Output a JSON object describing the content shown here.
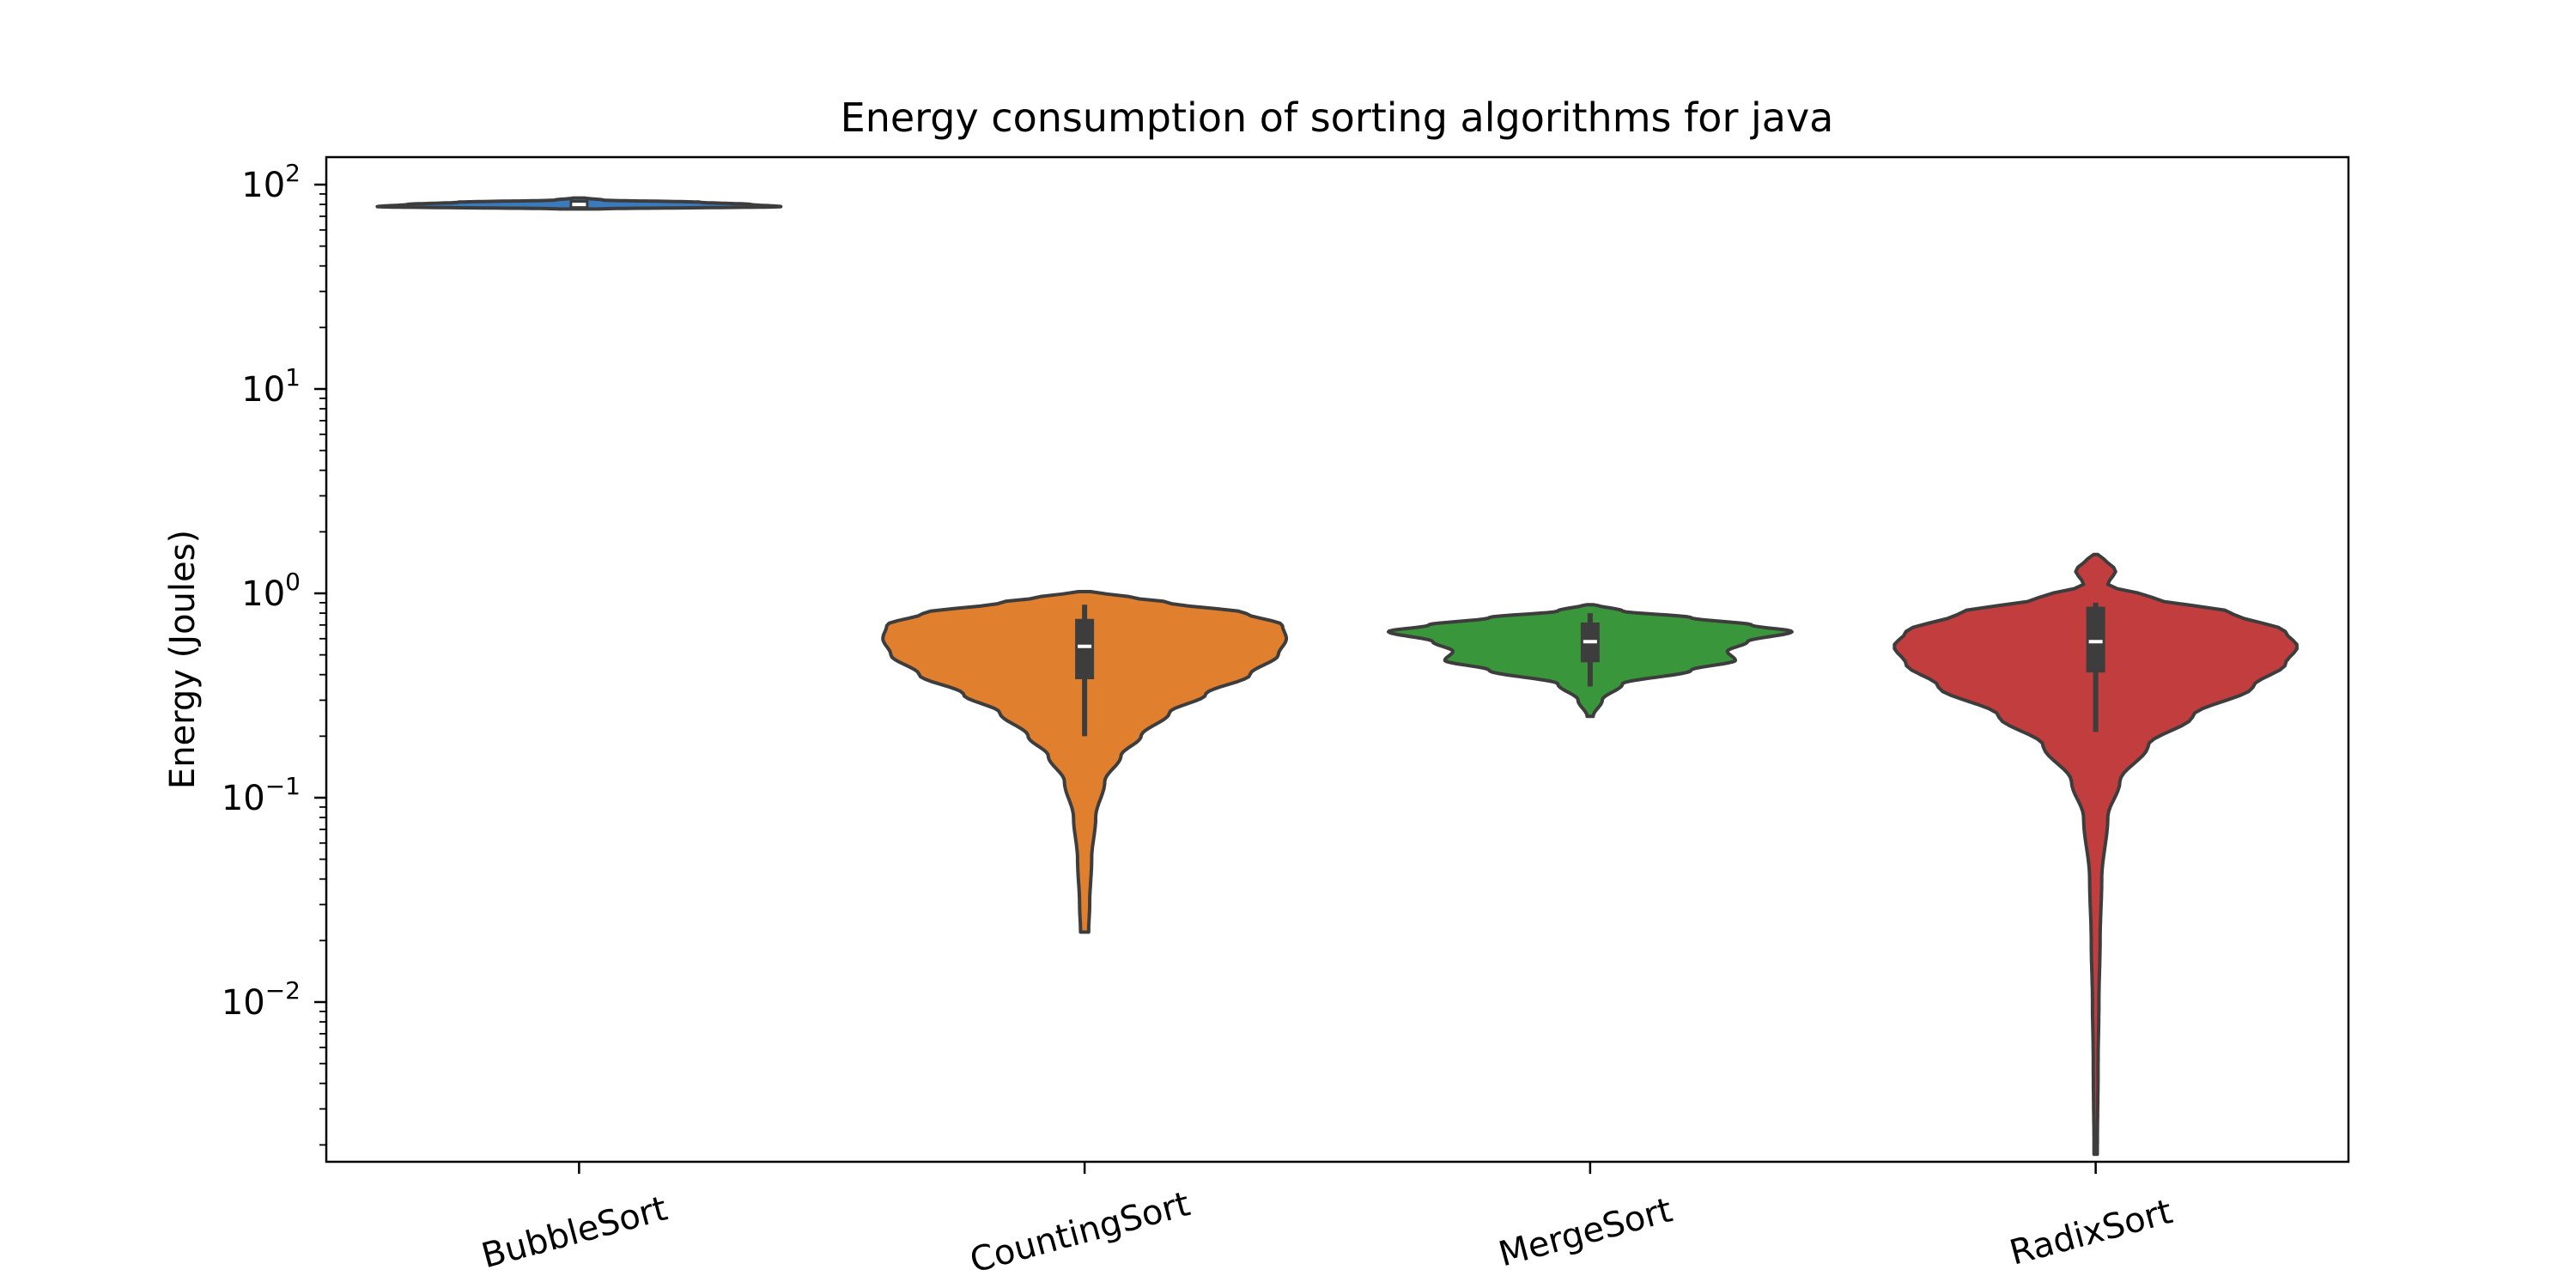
{
  "chart_data": {
    "type": "violin",
    "title": "Energy consumption of sorting algorithms for java",
    "xlabel": "",
    "ylabel": "Energy (Joules)",
    "yscale": "log",
    "ylim": [
      0.0018,
      140
    ],
    "yticks": [
      {
        "base": "10",
        "exp": "2",
        "value": 100
      },
      {
        "base": "10",
        "exp": "1",
        "value": 10
      },
      {
        "base": "10",
        "exp": "0",
        "value": 1
      },
      {
        "base": "10",
        "exp": "−1",
        "value": 0.1
      },
      {
        "base": "10",
        "exp": "−2",
        "value": 0.01
      }
    ],
    "categories": [
      "BubbleSort",
      "CountingSort",
      "MergeSort",
      "RadixSort"
    ],
    "series": [
      {
        "category": "BubbleSort",
        "color": "#3a7bbf",
        "median": 80,
        "q1": 76,
        "q3": 84,
        "whisker_low": 76,
        "whisker_high": 84,
        "min": 76,
        "max": 86,
        "profile": [
          [
            76,
            0.1
          ],
          [
            78,
            1.0
          ],
          [
            80,
            0.85
          ],
          [
            82,
            0.6
          ],
          [
            84,
            0.12
          ],
          [
            86,
            0.03
          ]
        ]
      },
      {
        "category": "CountingSort",
        "color": "#e07f2d",
        "median": 0.55,
        "q1": 0.38,
        "q3": 0.75,
        "whisker_low": 0.2,
        "whisker_high": 0.88,
        "min": 0.022,
        "max": 1.02,
        "profile": [
          [
            0.022,
            0.02
          ],
          [
            0.03,
            0.025
          ],
          [
            0.05,
            0.035
          ],
          [
            0.08,
            0.055
          ],
          [
            0.12,
            0.1
          ],
          [
            0.16,
            0.18
          ],
          [
            0.2,
            0.28
          ],
          [
            0.26,
            0.42
          ],
          [
            0.32,
            0.6
          ],
          [
            0.4,
            0.82
          ],
          [
            0.5,
            0.96
          ],
          [
            0.6,
            1.0
          ],
          [
            0.7,
            0.98
          ],
          [
            0.8,
            0.8
          ],
          [
            0.9,
            0.42
          ],
          [
            0.96,
            0.22
          ],
          [
            1.02,
            0.03
          ]
        ]
      },
      {
        "category": "MergeSort",
        "color": "#3a963a",
        "median": 0.58,
        "q1": 0.46,
        "q3": 0.72,
        "whisker_low": 0.35,
        "whisker_high": 0.8,
        "min": 0.25,
        "max": 0.88,
        "profile": [
          [
            0.25,
            0.015
          ],
          [
            0.3,
            0.06
          ],
          [
            0.36,
            0.16
          ],
          [
            0.42,
            0.5
          ],
          [
            0.47,
            0.72
          ],
          [
            0.52,
            0.68
          ],
          [
            0.58,
            0.78
          ],
          [
            0.65,
            1.0
          ],
          [
            0.7,
            0.8
          ],
          [
            0.76,
            0.5
          ],
          [
            0.82,
            0.16
          ],
          [
            0.88,
            0.03
          ]
        ]
      },
      {
        "category": "RadixSort",
        "color": "#c23d3d",
        "median": 0.58,
        "q1": 0.41,
        "q3": 0.86,
        "whisker_low": 0.21,
        "whisker_high": 0.9,
        "min": 0.0018,
        "max": 1.55,
        "profile": [
          [
            0.0018,
            0.008
          ],
          [
            0.005,
            0.012
          ],
          [
            0.01,
            0.016
          ],
          [
            0.02,
            0.022
          ],
          [
            0.04,
            0.03
          ],
          [
            0.08,
            0.06
          ],
          [
            0.12,
            0.12
          ],
          [
            0.18,
            0.26
          ],
          [
            0.25,
            0.48
          ],
          [
            0.35,
            0.78
          ],
          [
            0.45,
            0.94
          ],
          [
            0.55,
            1.0
          ],
          [
            0.65,
            0.94
          ],
          [
            0.8,
            0.68
          ],
          [
            0.95,
            0.28
          ],
          [
            1.1,
            0.06
          ],
          [
            1.3,
            0.1
          ],
          [
            1.42,
            0.06
          ],
          [
            1.55,
            0.01
          ]
        ]
      }
    ]
  }
}
